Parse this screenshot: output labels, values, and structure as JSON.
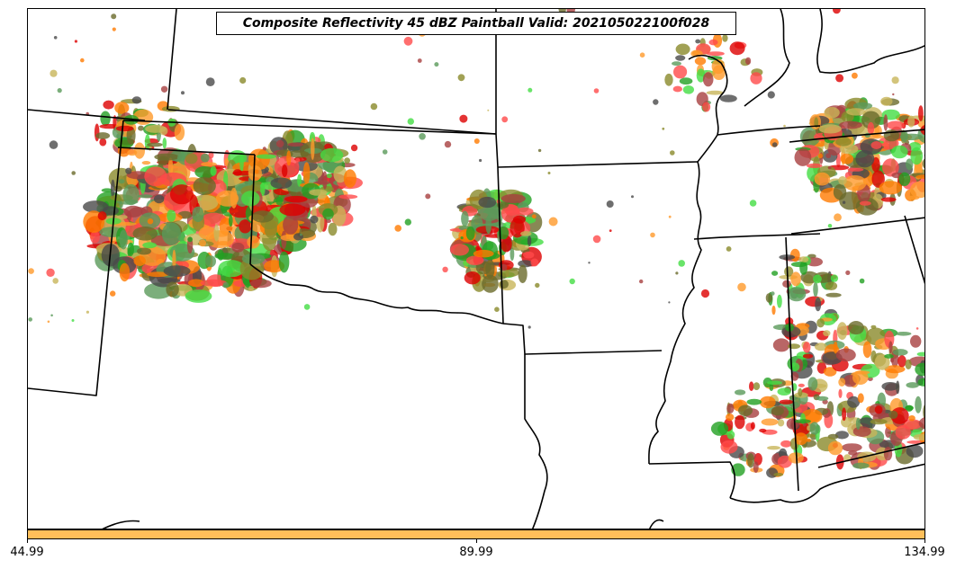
{
  "title": "Composite Reflectivity 45 dBZ Paintball Valid: 202105022100f028",
  "colorbar": {
    "color": "#ffbf5a",
    "ticks": [
      "44.99",
      "89.99",
      "134.99"
    ]
  },
  "member_colors": [
    "#ff4a4a",
    "#dd0000",
    "#ff9a2a",
    "#ff7a00",
    "#c8b55a",
    "#8a8a2a",
    "#a84040",
    "#4a4a4a",
    "#22a022",
    "#44dd44",
    "#5a9a5a",
    "#6a6a2a"
  ],
  "map": {
    "boundaries": "US state outlines and Gulf coastline (south-central United States)"
  }
}
